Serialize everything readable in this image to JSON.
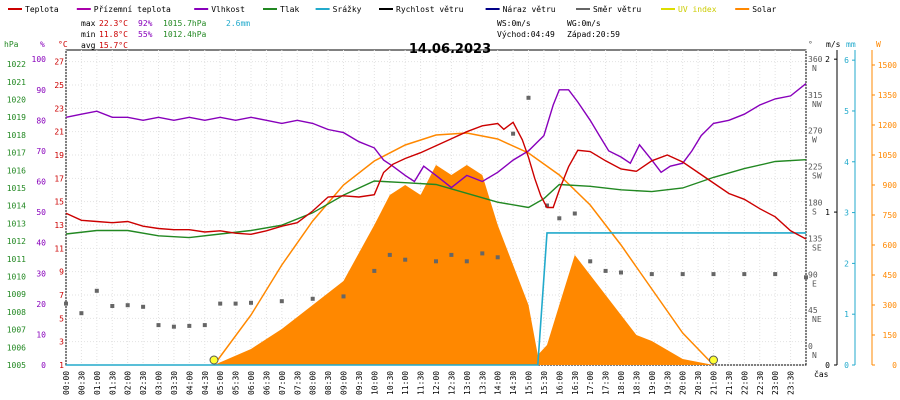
{
  "chart_data": {
    "type": "line",
    "title": "14.06.2023",
    "legend": [
      {
        "label": "Teplota",
        "color": "#cc0000"
      },
      {
        "label": "Přízemní teplota",
        "color": "#aa00aa"
      },
      {
        "label": "Vlhkost",
        "color": "#8800bb"
      },
      {
        "label": "Tlak",
        "color": "#228822"
      },
      {
        "label": "Srážky",
        "color": "#22aacc"
      },
      {
        "label": "Rychlost větru",
        "color": "#000000"
      },
      {
        "label": "Náraz větru",
        "color": "#000088"
      },
      {
        "label": "Směr větru",
        "color": "#666666"
      },
      {
        "label": "UV index",
        "color": "#dddd00"
      },
      {
        "label": "Solar",
        "color": "#ff8800"
      }
    ],
    "stats": {
      "max_label": "max",
      "max_temp": "22.3°C",
      "max_hum": "92%",
      "max_press": "1015.7hPa",
      "rain": "2.6mm",
      "min_label": "min",
      "min_temp": "11.8°C",
      "min_hum": "55%",
      "min_press": "1012.4hPa",
      "avg_label": "avg",
      "avg_temp": "15.7°C"
    },
    "wind_info": {
      "ws": "WS:0m/s",
      "wg": "WG:0m/s",
      "sunrise": "Východ:04:49",
      "sunset": "Západ:20:59"
    },
    "axis_units": {
      "hpa": "hPa",
      "pct": "%",
      "degc": "°C",
      "deg": "°",
      "ms": "m/s",
      "mm": "mm",
      "w": "W",
      "time": "čas"
    },
    "pressure_ticks": [
      1005,
      1006,
      1007,
      1008,
      1009,
      1010,
      1011,
      1012,
      1013,
      1014,
      1015,
      1016,
      1017,
      1018,
      1019,
      1020,
      1021,
      1022
    ],
    "humidity_ticks": [
      0,
      10,
      20,
      30,
      40,
      50,
      60,
      70,
      80,
      90,
      100
    ],
    "temp_ticks": [
      1,
      3,
      5,
      7,
      9,
      11,
      13,
      15,
      17,
      19,
      21,
      23,
      25,
      27
    ],
    "dir_ticks": [
      {
        "deg": "0",
        "dir": "N"
      },
      {
        "deg": "45",
        "dir": "NE"
      },
      {
        "deg": "90",
        "dir": "E"
      },
      {
        "deg": "135",
        "dir": "SE"
      },
      {
        "deg": "180",
        "dir": "S"
      },
      {
        "deg": "225",
        "dir": "SW"
      },
      {
        "deg": "270",
        "dir": "W"
      },
      {
        "deg": "315",
        "dir": "NW"
      },
      {
        "deg": "360",
        "dir": "N"
      }
    ],
    "ms_ticks": [
      0,
      1,
      2
    ],
    "mm_ticks": [
      0,
      1,
      2,
      3,
      4,
      5,
      6
    ],
    "w_ticks": [
      0,
      150,
      300,
      450,
      600,
      750,
      900,
      1050,
      1200,
      1350,
      1500
    ],
    "time_labels": [
      "00:00",
      "00:30",
      "01:00",
      "01:30",
      "02:00",
      "02:30",
      "03:00",
      "03:30",
      "04:00",
      "04:30",
      "05:00",
      "05:30",
      "06:00",
      "06:30",
      "07:00",
      "07:30",
      "08:00",
      "08:30",
      "09:00",
      "09:30",
      "10:00",
      "10:30",
      "11:00",
      "11:30",
      "12:00",
      "12:30",
      "13:00",
      "13:30",
      "14:00",
      "14:30",
      "15:00",
      "15:30",
      "16:00",
      "16:30",
      "17:00",
      "17:30",
      "18:00",
      "18:30",
      "19:00",
      "19:30",
      "20:00",
      "20:30",
      "21:00",
      "21:30",
      "22:00",
      "22:30",
      "23:00",
      "23:30"
    ],
    "series": [
      {
        "name": "Teplota",
        "unit": "°C",
        "points": [
          [
            0,
            14
          ],
          [
            0.5,
            13.4
          ],
          [
            1,
            13.3
          ],
          [
            1.5,
            13.2
          ],
          [
            2,
            13.3
          ],
          [
            2.5,
            12.9
          ],
          [
            3,
            12.7
          ],
          [
            3.5,
            12.6
          ],
          [
            4,
            12.6
          ],
          [
            4.5,
            12.4
          ],
          [
            5,
            12.5
          ],
          [
            5.5,
            12.3
          ],
          [
            6,
            12.2
          ],
          [
            6.5,
            12.5
          ],
          [
            7,
            12.9
          ],
          [
            7.5,
            13.2
          ],
          [
            8,
            14.2
          ],
          [
            8.5,
            15.4
          ],
          [
            9,
            15.5
          ],
          [
            9.5,
            15.4
          ],
          [
            10,
            15.6
          ],
          [
            10.3,
            17.5
          ],
          [
            10.6,
            18.2
          ],
          [
            11,
            18.7
          ],
          [
            11.5,
            19.2
          ],
          [
            12,
            19.8
          ],
          [
            12.5,
            20.4
          ],
          [
            13,
            21
          ],
          [
            13.5,
            21.5
          ],
          [
            14,
            21.7
          ],
          [
            14.2,
            21.2
          ],
          [
            14.5,
            21.8
          ],
          [
            14.8,
            20.3
          ],
          [
            15,
            18.8
          ],
          [
            15.2,
            17
          ],
          [
            15.4,
            15.5
          ],
          [
            15.6,
            14.5
          ],
          [
            15.8,
            14.5
          ],
          [
            16,
            16
          ],
          [
            16.3,
            18
          ],
          [
            16.6,
            19.4
          ],
          [
            17,
            19.3
          ],
          [
            17.5,
            18.5
          ],
          [
            18,
            17.8
          ],
          [
            18.5,
            17.6
          ],
          [
            19,
            18.5
          ],
          [
            19.5,
            19
          ],
          [
            20,
            18.4
          ],
          [
            20.5,
            17.5
          ],
          [
            21,
            16.6
          ],
          [
            21.5,
            15.7
          ],
          [
            22,
            15.2
          ],
          [
            22.5,
            14.4
          ],
          [
            23,
            13.7
          ],
          [
            23.5,
            12.5
          ],
          [
            24,
            11.8
          ]
        ]
      },
      {
        "name": "Vlhkost",
        "unit": "%",
        "points": [
          [
            0,
            81
          ],
          [
            0.5,
            82
          ],
          [
            1,
            83
          ],
          [
            1.5,
            81
          ],
          [
            2,
            81
          ],
          [
            2.5,
            80
          ],
          [
            3,
            81
          ],
          [
            3.5,
            80
          ],
          [
            4,
            81
          ],
          [
            4.5,
            80
          ],
          [
            5,
            81
          ],
          [
            5.5,
            80
          ],
          [
            6,
            81
          ],
          [
            6.5,
            80
          ],
          [
            7,
            79
          ],
          [
            7.5,
            80
          ],
          [
            8,
            79
          ],
          [
            8.5,
            77
          ],
          [
            9,
            76
          ],
          [
            9.5,
            73
          ],
          [
            10,
            71
          ],
          [
            10.3,
            67
          ],
          [
            10.6,
            65
          ],
          [
            11,
            62
          ],
          [
            11.3,
            60
          ],
          [
            11.6,
            65
          ],
          [
            12,
            62
          ],
          [
            12.5,
            58
          ],
          [
            13,
            62
          ],
          [
            13.5,
            60
          ],
          [
            14,
            63
          ],
          [
            14.5,
            67
          ],
          [
            15,
            70
          ],
          [
            15.5,
            75
          ],
          [
            15.8,
            85
          ],
          [
            16,
            90
          ],
          [
            16.3,
            90
          ],
          [
            16.6,
            86
          ],
          [
            17,
            80
          ],
          [
            17.3,
            75
          ],
          [
            17.6,
            70
          ],
          [
            18,
            68
          ],
          [
            18.3,
            66
          ],
          [
            18.6,
            72
          ],
          [
            19,
            67
          ],
          [
            19.3,
            63
          ],
          [
            19.6,
            65
          ],
          [
            20,
            66
          ],
          [
            20.3,
            70
          ],
          [
            20.6,
            75
          ],
          [
            21,
            79
          ],
          [
            21.5,
            80
          ],
          [
            22,
            82
          ],
          [
            22.5,
            85
          ],
          [
            23,
            87
          ],
          [
            23.5,
            88
          ],
          [
            24,
            92
          ]
        ]
      },
      {
        "name": "Tlak",
        "unit": "hPa",
        "points": [
          [
            0,
            1012.4
          ],
          [
            1,
            1012.6
          ],
          [
            2,
            1012.6
          ],
          [
            3,
            1012.3
          ],
          [
            4,
            1012.2
          ],
          [
            5,
            1012.4
          ],
          [
            6,
            1012.6
          ],
          [
            7,
            1012.9
          ],
          [
            8,
            1013.6
          ],
          [
            9,
            1014.6
          ],
          [
            10,
            1015.4
          ],
          [
            11,
            1015.3
          ],
          [
            12,
            1015.2
          ],
          [
            13,
            1014.7
          ],
          [
            14,
            1014.2
          ],
          [
            15,
            1013.9
          ],
          [
            15.5,
            1014.4
          ],
          [
            16,
            1015.2
          ],
          [
            17,
            1015.1
          ],
          [
            18,
            1014.9
          ],
          [
            19,
            1014.8
          ],
          [
            20,
            1015.0
          ],
          [
            21,
            1015.6
          ],
          [
            22,
            1016.1
          ],
          [
            23,
            1016.5
          ],
          [
            24,
            1016.6
          ]
        ]
      },
      {
        "name": "Srážky",
        "unit": "mm",
        "points": [
          [
            0,
            0
          ],
          [
            15.3,
            0
          ],
          [
            15.6,
            2.6
          ],
          [
            24,
            2.6
          ]
        ]
      },
      {
        "name": "Solar",
        "unit": "W",
        "points": [
          [
            4.8,
            0
          ],
          [
            6,
            80
          ],
          [
            7,
            180
          ],
          [
            8,
            300
          ],
          [
            9,
            420
          ],
          [
            10,
            700
          ],
          [
            10.5,
            850
          ],
          [
            11,
            900
          ],
          [
            11.5,
            850
          ],
          [
            12,
            1000
          ],
          [
            12.5,
            950
          ],
          [
            13,
            1000
          ],
          [
            13.5,
            950
          ],
          [
            14,
            700
          ],
          [
            14.5,
            500
          ],
          [
            15,
            300
          ],
          [
            15.3,
            50
          ],
          [
            15.6,
            100
          ],
          [
            16,
            300
          ],
          [
            16.5,
            550
          ],
          [
            17,
            450
          ],
          [
            17.5,
            350
          ],
          [
            18,
            250
          ],
          [
            18.5,
            150
          ],
          [
            19,
            120
          ],
          [
            20,
            30
          ],
          [
            21,
            0
          ]
        ]
      },
      {
        "name": "Solar max",
        "unit": "W",
        "points": [
          [
            4.8,
            0
          ],
          [
            6,
            250
          ],
          [
            7,
            500
          ],
          [
            8,
            720
          ],
          [
            9,
            900
          ],
          [
            10,
            1020
          ],
          [
            11,
            1100
          ],
          [
            12,
            1150
          ],
          [
            13,
            1160
          ],
          [
            14,
            1130
          ],
          [
            15,
            1060
          ],
          [
            16,
            950
          ],
          [
            17,
            800
          ],
          [
            18,
            600
          ],
          [
            19,
            380
          ],
          [
            20,
            160
          ],
          [
            21,
            0
          ]
        ]
      },
      {
        "name": "Směr větru",
        "unit": "°",
        "points": [
          [
            0,
            57
          ],
          [
            0.5,
            45
          ],
          [
            1,
            73
          ],
          [
            1.5,
            54
          ],
          [
            2,
            55
          ],
          [
            2.5,
            53
          ],
          [
            3,
            30
          ],
          [
            3.5,
            28
          ],
          [
            4,
            29
          ],
          [
            4.5,
            30
          ],
          [
            5,
            57
          ],
          [
            5.5,
            57
          ],
          [
            6,
            58
          ],
          [
            7,
            60
          ],
          [
            8,
            63
          ],
          [
            9,
            66
          ],
          [
            10,
            98
          ],
          [
            10.5,
            118
          ],
          [
            11,
            112
          ],
          [
            12,
            110
          ],
          [
            12.5,
            118
          ],
          [
            13,
            110
          ],
          [
            13.5,
            120
          ],
          [
            14,
            115
          ],
          [
            14.5,
            270
          ],
          [
            15,
            315
          ],
          [
            15.6,
            180
          ],
          [
            16,
            164
          ],
          [
            16.5,
            170
          ],
          [
            17,
            110
          ],
          [
            17.5,
            98
          ],
          [
            18,
            96
          ],
          [
            19,
            94
          ],
          [
            20,
            94
          ],
          [
            21,
            94
          ],
          [
            22,
            94
          ],
          [
            23,
            94
          ],
          [
            24,
            90
          ]
        ]
      }
    ],
    "markers": [
      {
        "name": "UV index",
        "x": [
          4.8,
          21
        ]
      }
    ]
  }
}
